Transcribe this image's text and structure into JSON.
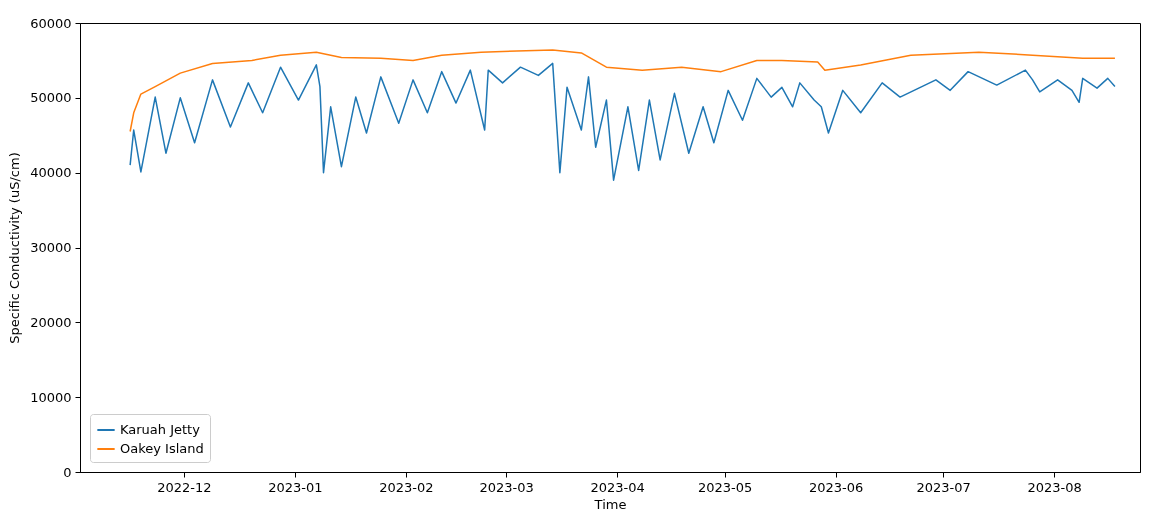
{
  "chart_data": {
    "type": "line",
    "xlabel": "Time",
    "ylabel": "Specific Conductivity (uS/cm)",
    "xlim": [
      "2022-11-02",
      "2023-08-25"
    ],
    "xticks": [
      "2022-12",
      "2023-01",
      "2023-02",
      "2023-03",
      "2023-04",
      "2023-05",
      "2023-06",
      "2023-07",
      "2023-08"
    ],
    "ylim": [
      0,
      60000
    ],
    "yticks": [
      0,
      10000,
      20000,
      30000,
      40000,
      50000,
      60000
    ],
    "grid": false,
    "legend": "bottom left",
    "series": [
      {
        "name": "Karuah Jetty",
        "color": "#1f77b4",
        "x": [
          "2022-11-16",
          "2022-11-17",
          "2022-11-19",
          "2022-11-23",
          "2022-11-26",
          "2022-11-30",
          "2022-12-04",
          "2022-12-09",
          "2022-12-14",
          "2022-12-19",
          "2022-12-23",
          "2022-12-28",
          "2023-01-02",
          "2023-01-07",
          "2023-01-08",
          "2023-01-09",
          "2023-01-11",
          "2023-01-14",
          "2023-01-18",
          "2023-01-21",
          "2023-01-25",
          "2023-01-30",
          "2023-02-03",
          "2023-02-07",
          "2023-02-11",
          "2023-02-15",
          "2023-02-19",
          "2023-02-23",
          "2023-02-24",
          "2023-02-28",
          "2023-03-05",
          "2023-03-10",
          "2023-03-14",
          "2023-03-16",
          "2023-03-18",
          "2023-03-22",
          "2023-03-24",
          "2023-03-26",
          "2023-03-29",
          "2023-03-31",
          "2023-04-04",
          "2023-04-07",
          "2023-04-10",
          "2023-04-13",
          "2023-04-17",
          "2023-04-21",
          "2023-04-25",
          "2023-04-28",
          "2023-05-02",
          "2023-05-06",
          "2023-05-10",
          "2023-05-14",
          "2023-05-17",
          "2023-05-20",
          "2023-05-22",
          "2023-05-26",
          "2023-05-28",
          "2023-05-30",
          "2023-06-03",
          "2023-06-08",
          "2023-06-14",
          "2023-06-19",
          "2023-06-29",
          "2023-07-03",
          "2023-07-08",
          "2023-07-16",
          "2023-07-24",
          "2023-07-26",
          "2023-07-28",
          "2023-08-02",
          "2023-08-06",
          "2023-08-08",
          "2023-08-09",
          "2023-08-13",
          "2023-08-16",
          "2023-08-18"
        ],
        "values": [
          41000,
          45700,
          40100,
          50100,
          42600,
          50000,
          44000,
          52400,
          46100,
          52000,
          48000,
          54100,
          49700,
          54400,
          51500,
          40000,
          48800,
          40800,
          50100,
          45300,
          52800,
          46600,
          52400,
          48000,
          53500,
          49300,
          53700,
          45700,
          53700,
          52000,
          54100,
          53000,
          54600,
          40000,
          51400,
          45700,
          52800,
          43400,
          49700,
          39000,
          48800,
          40300,
          49700,
          41700,
          50600,
          42600,
          48800,
          44000,
          51000,
          47000,
          52600,
          50100,
          51400,
          48800,
          52000,
          49700,
          48800,
          45300,
          51000,
          48000,
          52000,
          50100,
          52400,
          51000,
          53500,
          51700,
          53700,
          52400,
          50800,
          52400,
          51000,
          49400,
          52600,
          51300,
          52600,
          51500
        ]
      },
      {
        "name": "Oakey Island",
        "color": "#ff7f0e",
        "x": [
          "2022-11-16",
          "2022-11-17",
          "2022-11-19",
          "2022-11-23",
          "2022-11-30",
          "2022-12-09",
          "2022-12-20",
          "2022-12-28",
          "2023-01-07",
          "2023-01-14",
          "2023-01-25",
          "2023-02-03",
          "2023-02-11",
          "2023-02-22",
          "2023-03-14",
          "2023-03-22",
          "2023-03-29",
          "2023-04-08",
          "2023-04-19",
          "2023-04-30",
          "2023-05-10",
          "2023-05-17",
          "2023-05-27",
          "2023-05-29",
          "2023-06-08",
          "2023-06-22",
          "2023-07-11",
          "2023-07-26",
          "2023-08-09",
          "2023-08-18"
        ],
        "values": [
          45500,
          48000,
          50500,
          51500,
          53300,
          54600,
          55000,
          55700,
          56100,
          55400,
          55300,
          55000,
          55700,
          56100,
          56400,
          56000,
          54100,
          53700,
          54100,
          53500,
          55000,
          55000,
          54800,
          53700,
          54400,
          55700,
          56100,
          55700,
          55300,
          55300
        ]
      }
    ]
  }
}
